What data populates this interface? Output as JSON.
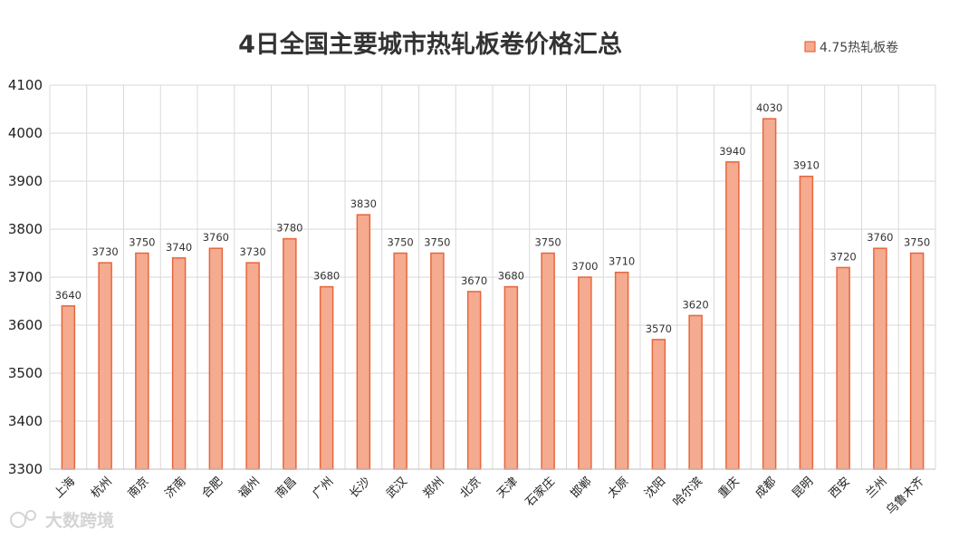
{
  "chart_data": {
    "type": "bar",
    "title": "4日全国主要城市热轧板卷价格汇总",
    "xlabel": "",
    "ylabel": "",
    "ylim": [
      3300,
      4100
    ],
    "yticks": [
      3300,
      3400,
      3500,
      3600,
      3700,
      3800,
      3900,
      4000,
      4100
    ],
    "grid": true,
    "legend_position": "top-right",
    "categories": [
      "上海",
      "杭州",
      "南京",
      "济南",
      "合肥",
      "福州",
      "南昌",
      "广州",
      "长沙",
      "武汉",
      "郑州",
      "北京",
      "天津",
      "石家庄",
      "邯郸",
      "太原",
      "沈阳",
      "哈尔滨",
      "重庆",
      "成都",
      "昆明",
      "西安",
      "兰州",
      "乌鲁木齐"
    ],
    "series": [
      {
        "name": "4.75热轧板卷",
        "values": [
          3640,
          3730,
          3750,
          3740,
          3760,
          3730,
          3780,
          3680,
          3830,
          3750,
          3750,
          3670,
          3680,
          3750,
          3700,
          3710,
          3570,
          3620,
          3940,
          4030,
          3910,
          3720,
          3760,
          3750
        ]
      }
    ]
  },
  "colors": {
    "bar_fill": "#f4ab8f",
    "bar_stroke": "#e8663e",
    "grid": "#d9d9d9",
    "plot_bg": "#ffffff"
  },
  "watermark": "大数跨境"
}
